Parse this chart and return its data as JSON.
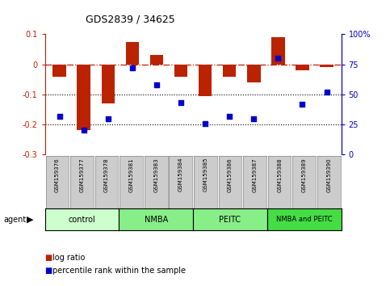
{
  "title": "GDS2839 / 34625",
  "samples": [
    "GSM159376",
    "GSM159377",
    "GSM159378",
    "GSM159381",
    "GSM159383",
    "GSM159384",
    "GSM159385",
    "GSM159386",
    "GSM159387",
    "GSM159388",
    "GSM159389",
    "GSM159390"
  ],
  "log_ratio": [
    -0.04,
    -0.22,
    -0.13,
    0.075,
    0.03,
    -0.04,
    -0.105,
    -0.04,
    -0.06,
    0.09,
    -0.02,
    -0.01
  ],
  "percentile_rank": [
    32,
    20,
    30,
    72,
    58,
    43,
    26,
    32,
    30,
    80,
    42,
    52
  ],
  "bar_color": "#bb2200",
  "scatter_color": "#0000cc",
  "ylim_left": [
    -0.3,
    0.1
  ],
  "ylim_right": [
    0,
    100
  ],
  "yticks_left": [
    -0.3,
    -0.2,
    -0.1,
    0.0,
    0.1
  ],
  "yticks_right": [
    0,
    25,
    50,
    75,
    100
  ],
  "dotted_lines": [
    -0.1,
    -0.2
  ],
  "group_defs": [
    {
      "label": "control",
      "start": 0,
      "end": 2,
      "color": "#ccffcc"
    },
    {
      "label": "NMBA",
      "start": 3,
      "end": 5,
      "color": "#88ee88"
    },
    {
      "label": "PEITC",
      "start": 6,
      "end": 8,
      "color": "#88ee88"
    },
    {
      "label": "NMBA and PEITC",
      "start": 9,
      "end": 11,
      "color": "#44dd44"
    }
  ],
  "sample_box_color": "#cccccc",
  "background_color": "#ffffff"
}
